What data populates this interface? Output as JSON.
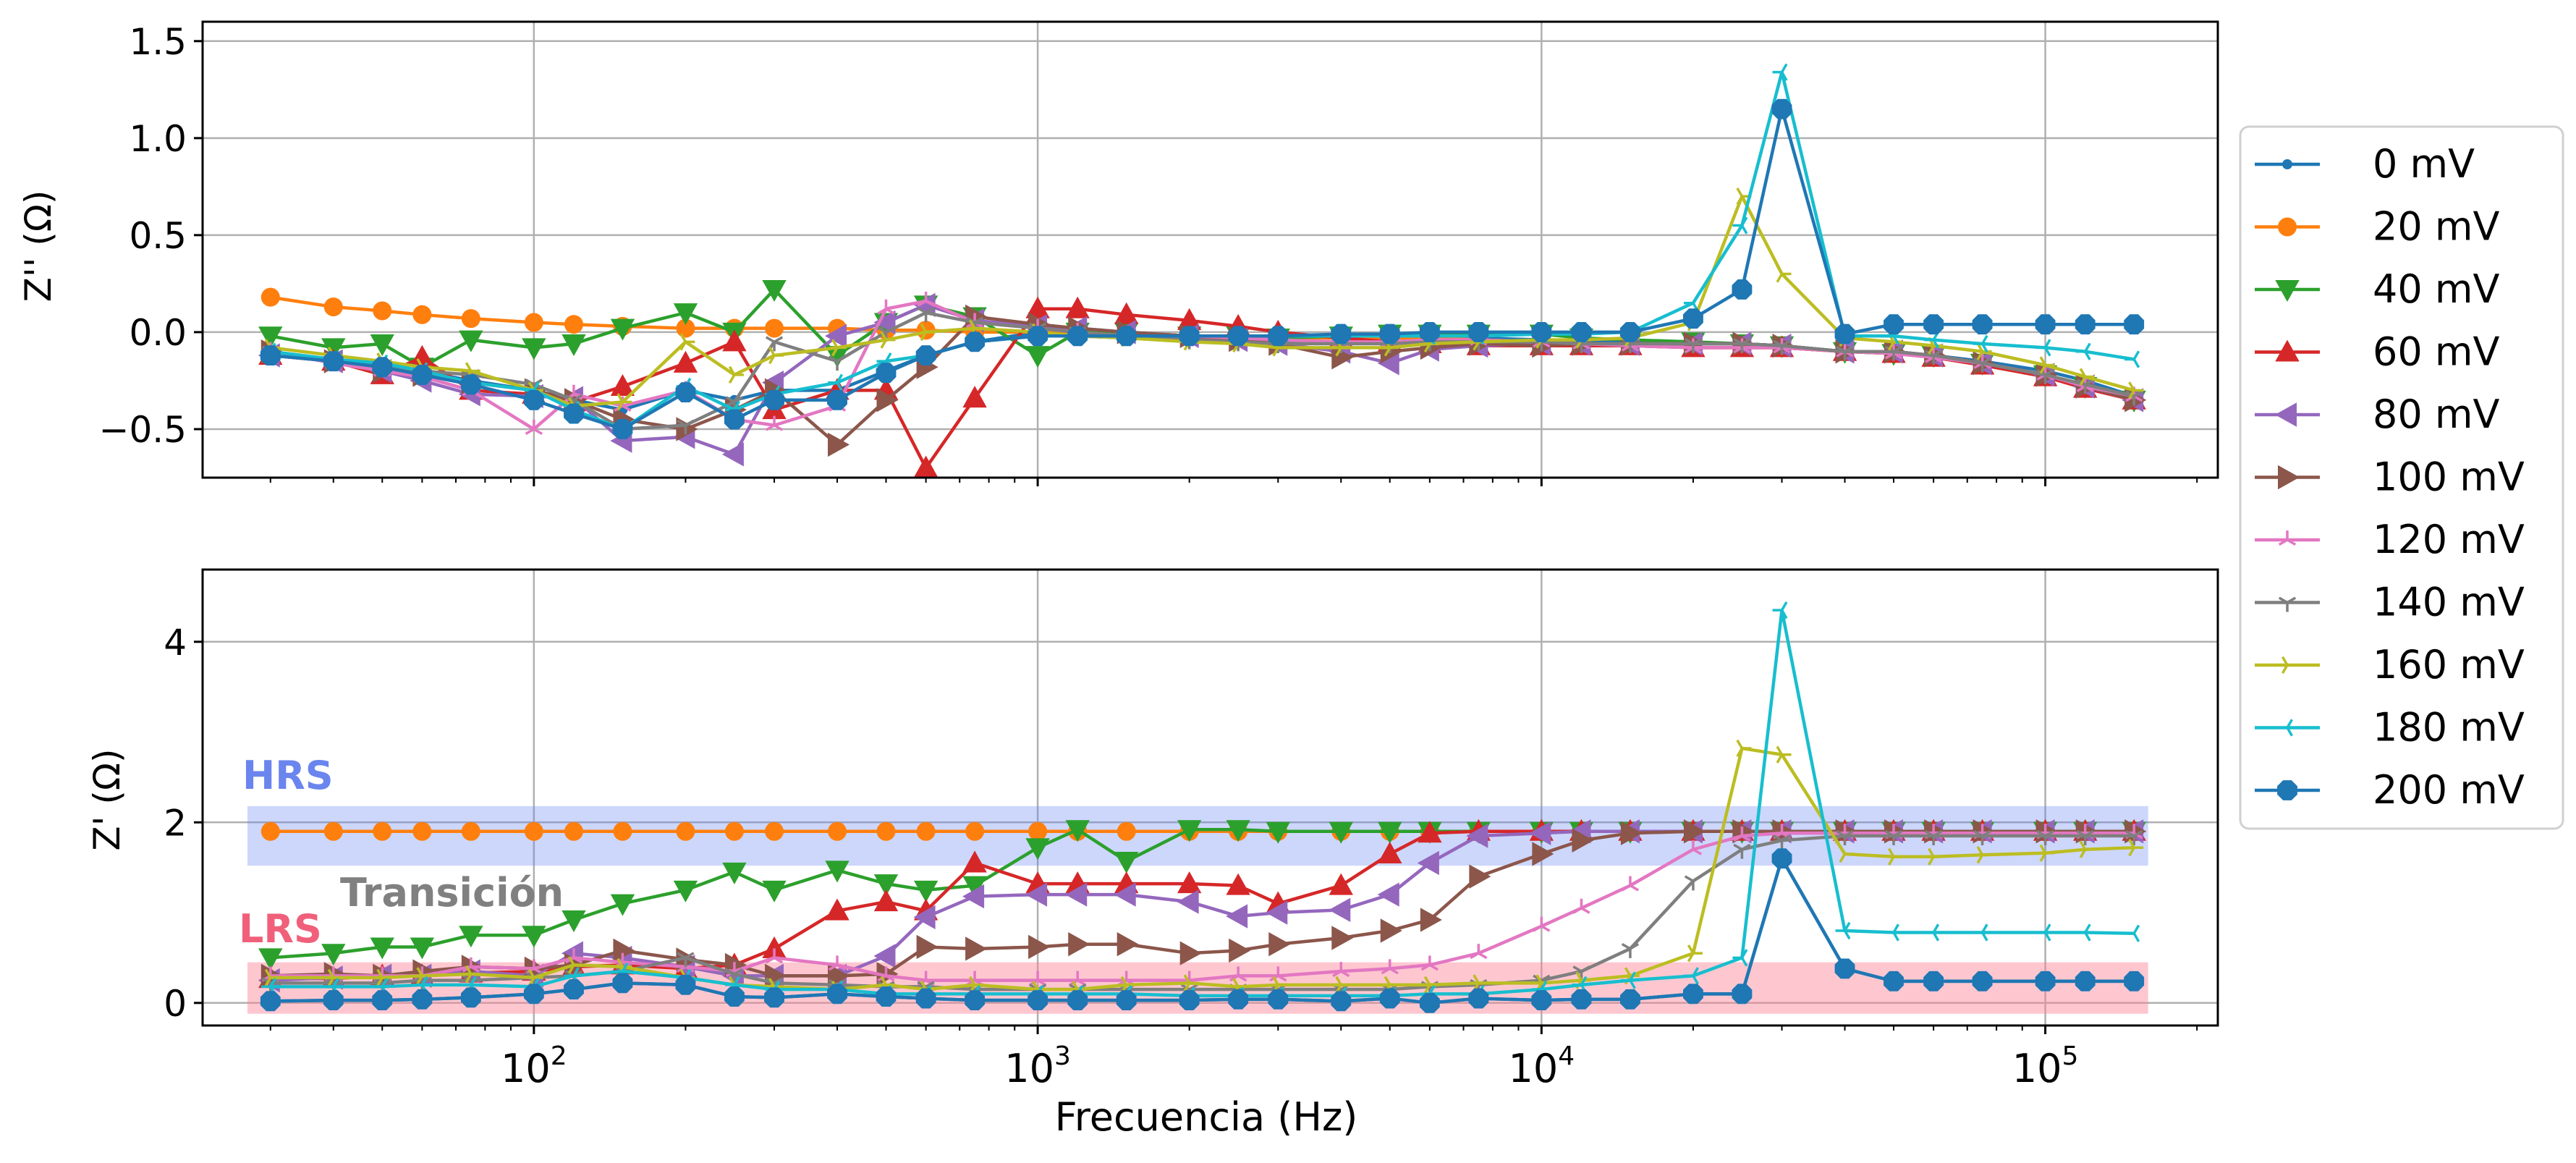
{
  "chart_data": {
    "type": "line",
    "xlabel": "Frecuencia (Hz)",
    "xscale": "log",
    "xlim": [
      22,
      220000
    ],
    "x_ticks": [
      {
        "value": 100,
        "base": "10",
        "exp": "2"
      },
      {
        "value": 1000,
        "base": "10",
        "exp": "3"
      },
      {
        "value": 10000,
        "base": "10",
        "exp": "4"
      },
      {
        "value": 100000,
        "base": "10",
        "exp": "5"
      }
    ],
    "grid": true,
    "legend_position": "right",
    "x": [
      30,
      40,
      50,
      60,
      75,
      100,
      120,
      150,
      200,
      250,
      300,
      400,
      500,
      600,
      750,
      1000,
      1200,
      1500,
      2000,
      2500,
      3000,
      4000,
      5000,
      6000,
      7500,
      10000,
      12000,
      15000,
      20000,
      25000,
      30000,
      40000,
      50000,
      60000,
      75000,
      100000,
      120000,
      150000
    ],
    "series": [
      {
        "name": "0 mV",
        "color": "#1f77b4",
        "marker": "point"
      },
      {
        "name": "20 mV",
        "color": "#ff7f0e",
        "marker": "circle"
      },
      {
        "name": "40 mV",
        "color": "#2ca02c",
        "marker": "triangle-down"
      },
      {
        "name": "60 mV",
        "color": "#d62728",
        "marker": "triangle-up"
      },
      {
        "name": "80 mV",
        "color": "#9467bd",
        "marker": "triangle-left"
      },
      {
        "name": "100 mV",
        "color": "#8c564b",
        "marker": "triangle-right"
      },
      {
        "name": "120 mV",
        "color": "#e377c2",
        "marker": "tri-down"
      },
      {
        "name": "140 mV",
        "color": "#7f7f7f",
        "marker": "tri-up"
      },
      {
        "name": "160 mV",
        "color": "#bcbd22",
        "marker": "tri-left"
      },
      {
        "name": "180 mV",
        "color": "#17becf",
        "marker": "tri-right"
      },
      {
        "name": "200 mV",
        "color": "#1f77b4",
        "marker": "octagon"
      }
    ],
    "panels": [
      {
        "id": "top",
        "ylabel": "Z'' (Ω)",
        "ylim": [
          -0.75,
          1.6
        ],
        "y_ticks": [
          "−0.5",
          "0.0",
          "0.5",
          "1.0",
          "1.5"
        ],
        "y_tick_values": [
          -0.5,
          0.0,
          0.5,
          1.0,
          1.5
        ],
        "values": [
          [
            -0.12,
            -0.15,
            -0.18,
            -0.2,
            -0.25,
            -0.3,
            -0.35,
            -0.4,
            -0.3,
            -0.35,
            -0.3,
            -0.3,
            -0.2,
            -0.12,
            -0.05,
            0,
            -0.02,
            -0.03,
            -0.03,
            -0.04,
            -0.05,
            -0.05,
            -0.05,
            -0.04,
            -0.03,
            -0.04,
            -0.05,
            -0.05,
            -0.06,
            -0.06,
            -0.07,
            -0.1,
            -0.1,
            -0.12,
            -0.15,
            -0.2,
            -0.25,
            -0.33
          ],
          [
            0.18,
            0.13,
            0.11,
            0.09,
            0.07,
            0.05,
            0.04,
            0.03,
            0.02,
            0.02,
            0.02,
            0.02,
            0.01,
            0.01,
            0.0,
            0.0,
            0.0,
            -0.01,
            -0.02,
            -0.02,
            -0.03,
            -0.03,
            -0.03,
            -0.03,
            -0.04,
            -0.05,
            -0.06,
            -0.07,
            -0.08,
            -0.08,
            -0.08,
            -0.1,
            -0.11,
            -0.13,
            -0.16,
            -0.22,
            -0.28,
            -0.34
          ],
          [
            -0.02,
            -0.08,
            -0.06,
            -0.18,
            -0.04,
            -0.08,
            -0.06,
            0.02,
            0.1,
            0.0,
            0.22,
            -0.12,
            0.05,
            0.14,
            0.08,
            -0.12,
            0.0,
            0.0,
            -0.02,
            -0.02,
            -0.03,
            -0.02,
            -0.01,
            -0.01,
            -0.01,
            -0.01,
            -0.03,
            -0.04,
            -0.05,
            -0.06,
            -0.07,
            -0.1,
            -0.11,
            -0.12,
            -0.16,
            -0.22,
            -0.28,
            -0.35
          ],
          [
            -0.12,
            -0.15,
            -0.22,
            -0.13,
            -0.3,
            -0.32,
            -0.36,
            -0.28,
            -0.16,
            -0.05,
            -0.4,
            -0.3,
            -0.3,
            -0.7,
            -0.34,
            0.12,
            0.12,
            0.09,
            0.06,
            0.03,
            0.0,
            -0.03,
            -0.05,
            -0.06,
            -0.07,
            -0.07,
            -0.07,
            -0.07,
            -0.08,
            -0.08,
            -0.08,
            -0.1,
            -0.11,
            -0.13,
            -0.17,
            -0.23,
            -0.29,
            -0.35
          ],
          [
            -0.12,
            -0.15,
            -0.2,
            -0.25,
            -0.32,
            -0.33,
            -0.34,
            -0.56,
            -0.54,
            -0.63,
            -0.26,
            -0.02,
            0.05,
            0.14,
            0.06,
            0.03,
            0.02,
            0.0,
            -0.02,
            -0.04,
            -0.06,
            -0.1,
            -0.16,
            -0.09,
            -0.07,
            -0.06,
            -0.06,
            -0.06,
            -0.06,
            -0.06,
            -0.07,
            -0.1,
            -0.1,
            -0.12,
            -0.16,
            -0.22,
            -0.28,
            -0.35
          ],
          [
            -0.1,
            -0.15,
            -0.2,
            -0.22,
            -0.26,
            -0.3,
            -0.35,
            -0.45,
            -0.5,
            -0.4,
            -0.3,
            -0.58,
            -0.35,
            -0.18,
            0.08,
            0.04,
            0.02,
            0.0,
            -0.02,
            -0.04,
            -0.06,
            -0.13,
            -0.1,
            -0.08,
            -0.06,
            -0.07,
            -0.06,
            -0.06,
            -0.06,
            -0.06,
            -0.07,
            -0.1,
            -0.1,
            -0.12,
            -0.16,
            -0.22,
            -0.28,
            -0.35
          ],
          [
            -0.1,
            -0.16,
            -0.2,
            -0.23,
            -0.3,
            -0.5,
            -0.32,
            -0.38,
            -0.3,
            -0.45,
            -0.48,
            -0.38,
            0.12,
            0.16,
            0.05,
            0.02,
            0.0,
            -0.02,
            -0.02,
            -0.03,
            -0.04,
            -0.05,
            -0.05,
            -0.04,
            -0.04,
            -0.05,
            -0.06,
            -0.07,
            -0.08,
            -0.08,
            -0.08,
            -0.1,
            -0.11,
            -0.13,
            -0.16,
            -0.22,
            -0.28,
            -0.33
          ],
          [
            -0.1,
            -0.14,
            -0.18,
            -0.2,
            -0.22,
            -0.27,
            -0.35,
            -0.5,
            -0.48,
            -0.36,
            -0.05,
            -0.15,
            0.0,
            0.1,
            0.05,
            0.02,
            0.0,
            -0.02,
            -0.04,
            -0.05,
            -0.06,
            -0.06,
            -0.06,
            -0.05,
            -0.05,
            -0.05,
            -0.06,
            -0.06,
            -0.06,
            -0.06,
            -0.07,
            -0.1,
            -0.1,
            -0.12,
            -0.16,
            -0.22,
            -0.27,
            -0.33
          ],
          [
            -0.08,
            -0.12,
            -0.15,
            -0.18,
            -0.2,
            -0.3,
            -0.38,
            -0.36,
            -0.05,
            -0.22,
            -0.12,
            -0.08,
            -0.04,
            0.0,
            0.02,
            0.0,
            -0.02,
            -0.03,
            -0.05,
            -0.06,
            -0.08,
            -0.08,
            -0.08,
            -0.06,
            -0.05,
            -0.04,
            -0.04,
            -0.03,
            0.05,
            0.7,
            0.3,
            -0.03,
            -0.05,
            -0.07,
            -0.1,
            -0.17,
            -0.23,
            -0.3
          ],
          [
            -0.1,
            -0.14,
            -0.16,
            -0.2,
            -0.26,
            -0.3,
            -0.4,
            -0.5,
            -0.28,
            -0.4,
            -0.32,
            -0.26,
            -0.15,
            -0.12,
            -0.05,
            -0.02,
            -0.02,
            -0.02,
            -0.02,
            -0.02,
            -0.02,
            -0.02,
            -0.02,
            -0.02,
            -0.02,
            -0.01,
            -0.01,
            0.0,
            0.15,
            0.55,
            1.34,
            -0.02,
            -0.02,
            -0.04,
            -0.06,
            -0.08,
            -0.1,
            -0.14
          ],
          [
            -0.12,
            -0.15,
            -0.18,
            -0.22,
            -0.27,
            -0.35,
            -0.42,
            -0.5,
            -0.31,
            -0.45,
            -0.35,
            -0.35,
            -0.21,
            -0.12,
            -0.05,
            -0.02,
            -0.02,
            -0.02,
            -0.02,
            -0.02,
            -0.02,
            -0.01,
            -0.01,
            0.0,
            0.0,
            0.0,
            0.0,
            0.0,
            0.07,
            0.22,
            1.15,
            -0.01,
            0.04,
            0.04,
            0.04,
            0.04,
            0.04,
            0.04
          ]
        ]
      },
      {
        "id": "bottom",
        "ylabel": "Z' (Ω)",
        "ylim": [
          -0.25,
          4.8
        ],
        "y_ticks": [
          "0",
          "2",
          "4"
        ],
        "y_tick_values": [
          0,
          2,
          4
        ],
        "values": [
          [
            0.02,
            0.03,
            0.03,
            0.04,
            0.06,
            0.1,
            0.15,
            0.22,
            0.2,
            0.07,
            0.06,
            0.1,
            0.07,
            0.05,
            0.03,
            0.03,
            0.03,
            0.03,
            0.03,
            0.04,
            0.04,
            0.02,
            0.05,
            0.0,
            0.05,
            0.03,
            0.04,
            0.04,
            0.1,
            0.1,
            1.6,
            0.38,
            0.24,
            0.24,
            0.24,
            0.24,
            0.24,
            0.24
          ],
          [
            1.9,
            1.9,
            1.9,
            1.9,
            1.9,
            1.9,
            1.9,
            1.9,
            1.9,
            1.9,
            1.9,
            1.9,
            1.9,
            1.9,
            1.9,
            1.9,
            1.9,
            1.9,
            1.9,
            1.9,
            1.9,
            1.9,
            1.9,
            1.9,
            1.9,
            1.9,
            1.9,
            1.9,
            1.9,
            1.9,
            1.9,
            1.9,
            1.9,
            1.9,
            1.9,
            1.9,
            1.9,
            1.9
          ],
          [
            0.5,
            0.55,
            0.62,
            0.62,
            0.75,
            0.75,
            0.92,
            1.1,
            1.25,
            1.45,
            1.25,
            1.47,
            1.32,
            1.25,
            1.3,
            1.72,
            1.92,
            1.57,
            1.92,
            1.92,
            1.9,
            1.9,
            1.9,
            1.9,
            1.9,
            1.9,
            1.9,
            1.9,
            1.9,
            1.9,
            1.9,
            1.9,
            1.9,
            1.9,
            1.9,
            1.9,
            1.9,
            1.9
          ],
          [
            0.27,
            0.27,
            0.3,
            0.3,
            0.33,
            0.35,
            0.4,
            0.42,
            0.38,
            0.42,
            0.6,
            1.02,
            1.12,
            1.02,
            1.55,
            1.32,
            1.32,
            1.32,
            1.32,
            1.3,
            1.1,
            1.3,
            1.65,
            1.88,
            1.9,
            1.9,
            1.9,
            1.9,
            1.9,
            1.9,
            1.9,
            1.9,
            1.9,
            1.9,
            1.9,
            1.9,
            1.9,
            1.9
          ],
          [
            0.25,
            0.28,
            0.3,
            0.3,
            0.35,
            0.3,
            0.55,
            0.5,
            0.4,
            0.3,
            0.3,
            0.3,
            0.52,
            0.95,
            1.18,
            1.2,
            1.2,
            1.2,
            1.12,
            0.96,
            1.0,
            1.03,
            1.2,
            1.55,
            1.85,
            1.88,
            1.9,
            1.9,
            1.9,
            1.9,
            1.9,
            1.9,
            1.9,
            1.9,
            1.9,
            1.9,
            1.9,
            1.9
          ],
          [
            0.3,
            0.32,
            0.3,
            0.35,
            0.4,
            0.38,
            0.42,
            0.58,
            0.48,
            0.42,
            0.3,
            0.3,
            0.32,
            0.62,
            0.6,
            0.62,
            0.65,
            0.65,
            0.55,
            0.58,
            0.65,
            0.72,
            0.8,
            0.92,
            1.4,
            1.65,
            1.8,
            1.88,
            1.9,
            1.9,
            1.9,
            1.9,
            1.9,
            1.9,
            1.9,
            1.9,
            1.9,
            1.9
          ],
          [
            0.3,
            0.3,
            0.3,
            0.3,
            0.4,
            0.38,
            0.5,
            0.45,
            0.4,
            0.35,
            0.5,
            0.42,
            0.3,
            0.25,
            0.25,
            0.25,
            0.25,
            0.25,
            0.25,
            0.3,
            0.3,
            0.35,
            0.38,
            0.42,
            0.55,
            0.85,
            1.05,
            1.3,
            1.7,
            1.85,
            1.88,
            1.88,
            1.88,
            1.88,
            1.88,
            1.88,
            1.88,
            1.88
          ],
          [
            0.22,
            0.22,
            0.22,
            0.25,
            0.25,
            0.28,
            0.3,
            0.35,
            0.5,
            0.32,
            0.22,
            0.2,
            0.18,
            0.18,
            0.15,
            0.15,
            0.15,
            0.15,
            0.15,
            0.15,
            0.15,
            0.15,
            0.15,
            0.18,
            0.2,
            0.25,
            0.35,
            0.6,
            1.35,
            1.7,
            1.8,
            1.85,
            1.85,
            1.85,
            1.85,
            1.85,
            1.85,
            1.85
          ],
          [
            0.28,
            0.28,
            0.28,
            0.3,
            0.32,
            0.28,
            0.42,
            0.4,
            0.28,
            0.2,
            0.18,
            0.15,
            0.2,
            0.15,
            0.2,
            0.15,
            0.15,
            0.2,
            0.22,
            0.18,
            0.2,
            0.2,
            0.2,
            0.2,
            0.22,
            0.22,
            0.25,
            0.3,
            0.55,
            2.82,
            2.75,
            1.65,
            1.62,
            1.62,
            1.64,
            1.66,
            1.7,
            1.72
          ],
          [
            0.18,
            0.18,
            0.18,
            0.2,
            0.2,
            0.18,
            0.3,
            0.35,
            0.28,
            0.2,
            0.15,
            0.15,
            0.1,
            0.1,
            0.1,
            0.1,
            0.1,
            0.1,
            0.08,
            0.08,
            0.08,
            0.08,
            0.08,
            0.1,
            0.1,
            0.15,
            0.2,
            0.25,
            0.3,
            0.5,
            4.35,
            0.8,
            0.78,
            0.78,
            0.78,
            0.78,
            0.78,
            0.77
          ],
          [
            0.02,
            0.03,
            0.03,
            0.04,
            0.06,
            0.1,
            0.15,
            0.22,
            0.2,
            0.07,
            0.06,
            0.1,
            0.07,
            0.05,
            0.03,
            0.03,
            0.03,
            0.03,
            0.03,
            0.04,
            0.04,
            0.02,
            0.05,
            0.0,
            0.05,
            0.03,
            0.04,
            0.04,
            0.1,
            0.1,
            1.6,
            0.38,
            0.24,
            0.24,
            0.24,
            0.24,
            0.24,
            0.24
          ]
        ],
        "bands": [
          {
            "label": "HRS",
            "y_from": 1.52,
            "y_to": 2.18,
            "x_from": 27,
            "x_to": 160000,
            "color": "#6a85ee",
            "fill": "rgba(100,130,245,0.32)"
          },
          {
            "label": "LRS",
            "y_from": -0.12,
            "y_to": 0.45,
            "x_from": 27,
            "x_to": 160000,
            "color": "#f0607a",
            "fill": "rgba(252,130,150,0.45)"
          }
        ],
        "annotations": [
          {
            "label": "Transición",
            "color": "#808080"
          }
        ]
      }
    ]
  }
}
